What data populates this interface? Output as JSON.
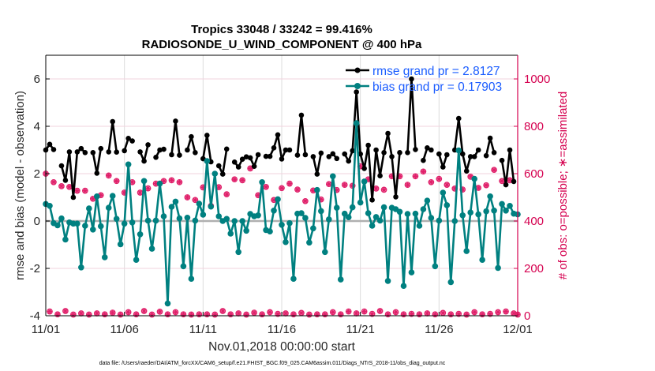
{
  "chart_data": {
    "type": "line",
    "title": "Tropics 33048 / 33242 = 99.416%",
    "subtitle": "RADIOSONDE_U_WIND_COMPONENT @ 400 hPa",
    "xlabel": "Nov.01,2018 00:00:00 start",
    "ylabel": "rmse and bias (model - observation)",
    "y2label": "# of obs: o=possible; ∗=assimilated",
    "footer": "data file: /Users/raeder/DAI/ATM_forcXX/CAM6_setup/f.e21.FHIST_BGC.f09_025.CAM6assim.011/Diags_NTrS_2018-11/obs_diag_output.nc",
    "x_tick_labels": [
      "11/01",
      "11/06",
      "11/11",
      "11/16",
      "11/21",
      "11/26",
      "12/01"
    ],
    "x_range_days": [
      0,
      30
    ],
    "x_step_days": 0.25,
    "ylim": [
      -4,
      7
    ],
    "y_ticks": [
      -4,
      -2,
      0,
      2,
      4,
      6
    ],
    "y2lim": [
      0,
      1100
    ],
    "y2_ticks": [
      0,
      200,
      400,
      600,
      800,
      1000
    ],
    "grid": true,
    "legend_placement": "top-right",
    "colors": {
      "rmse": "#000000",
      "bias": "#008080",
      "obs": "#e0206a",
      "right_axis": "#d5004f",
      "legend_text": "#1a5cff",
      "zero_line": "#b0b0b0"
    },
    "series": [
      {
        "name": "rmse grand pr = 2.8127",
        "axis": "left",
        "values": [
          3.0,
          3.24,
          3.02,
          null,
          2.33,
          1.72,
          2.92,
          1.0,
          2.92,
          3.06,
          2.89,
          null,
          2.89,
          2.02,
          3.06,
          null,
          2.92,
          4.2,
          2.91,
          null,
          2.97,
          3.49,
          3.38,
          null,
          2.92,
          2.53,
          3.22,
          null,
          2.69,
          3.0,
          3.03,
          null,
          2.8,
          4.22,
          2.78,
          null,
          3.0,
          3.56,
          2.89,
          null,
          2.63,
          3.62,
          2.5,
          null,
          2.33,
          1.98,
          3.04,
          null,
          2.49,
          2.28,
          2.61,
          2.71,
          2.67,
          2.31,
          2.8,
          null,
          2.73,
          2.73,
          3.09,
          3.64,
          2.62,
          3.0,
          3.0,
          null,
          2.78,
          4.47,
          2.8,
          null,
          2.72,
          1.98,
          2.87,
          null,
          2.72,
          2.84,
          2.64,
          null,
          2.83,
          2.53,
          2.97,
          5.45,
          2.83,
          2.22,
          3.2,
          0.89,
          3.0,
          1.91,
          2.89,
          3.7,
          2.72,
          1.02,
          2.89,
          null,
          2.89,
          6.0,
          3.02,
          null,
          2.56,
          3.09,
          3.0,
          null,
          2.83,
          2.28,
          2.8,
          null,
          3.0,
          4.33,
          2.83,
          2.11,
          2.72,
          2.72,
          3.0,
          null,
          2.76,
          3.5,
          2.89,
          null,
          2.56,
          1.53,
          3.0,
          1.67,
          null
        ]
      },
      {
        "name": "bias grand pr = 0.17903",
        "axis": "left",
        "values": [
          0.72,
          0.64,
          -0.09,
          -0.18,
          0.11,
          -0.78,
          -0.06,
          -0.11,
          -0.11,
          -1.96,
          -0.2,
          0.53,
          -0.36,
          1.04,
          -0.22,
          -1.53,
          0.56,
          1.06,
          0.09,
          -0.98,
          -0.11,
          2.39,
          -0.06,
          -1.64,
          -0.56,
          1.69,
          0.02,
          -1.17,
          0.02,
          1.58,
          0.2,
          -3.48,
          0.6,
          0.82,
          0.11,
          -1.91,
          0.14,
          -2.44,
          0.02,
          0.73,
          0.27,
          2.53,
          0.61,
          2.0,
          0.2,
          0,
          0.09,
          -0.53,
          0,
          -1.31,
          0,
          -0.41,
          0.3,
          0.2,
          0.24,
          1.64,
          -0.38,
          -0.44,
          0.44,
          0.92,
          -0.16,
          -0.89,
          -0.09,
          -2.44,
          0.31,
          0.33,
          0.13,
          -0.91,
          -0.31,
          1.31,
          0.42,
          -1.31,
          0.07,
          1.89,
          0.56,
          -2.47,
          0.31,
          0.16,
          0.58,
          4.13,
          0.78,
          1.67,
          0.33,
          -0.2,
          0.17,
          0.02,
          0.58,
          -2.53,
          0.56,
          0.5,
          0.39,
          -2.74,
          0.3,
          -2.17,
          0.31,
          -0.2,
          0.5,
          0.86,
          0.13,
          -1.91,
          0.02,
          1.2,
          0.67,
          -2.58,
          0,
          2.98,
          0.24,
          -1.27,
          0.36,
          1.78,
          0.28,
          -1.64,
          0.41,
          1.04,
          0.44,
          -1.98,
          0.72,
          0.44,
          0.64,
          0.31,
          0.28
        ]
      },
      {
        "name": "possible",
        "axis": "right",
        "values": [
          600,
          18,
          564,
          6,
          547,
          20,
          544,
          5,
          528,
          10,
          528,
          5,
          494,
          10,
          509,
          6,
          592,
          13,
          569,
          5,
          520,
          15,
          564,
          6,
          520,
          20,
          538,
          5,
          558,
          17,
          569,
          6,
          572,
          15,
          564,
          6,
          500,
          5,
          489,
          6,
          542,
          6,
          464,
          5,
          543,
          20,
          513,
          6,
          576,
          10,
          572,
          5,
          622,
          13,
          509,
          6,
          544,
          15,
          489,
          8,
          539,
          10,
          558,
          6,
          533,
          12,
          484,
          5,
          529,
          6,
          491,
          6,
          556,
          15,
          531,
          6,
          553,
          18,
          549,
          10,
          631,
          18,
          576,
          8,
          537,
          20,
          532,
          6,
          589,
          15,
          589,
          6,
          553,
          8,
          589,
          6,
          609,
          10,
          564,
          6,
          578,
          12,
          553,
          6,
          537,
          8,
          533,
          5,
          587,
          15,
          540,
          6,
          551,
          8,
          616,
          15,
          569,
          18,
          572,
          10,
          5
        ]
      },
      {
        "name": "assimilated",
        "axis": "right",
        "values": [
          600,
          18,
          564,
          6,
          547,
          20,
          544,
          5,
          528,
          10,
          528,
          5,
          494,
          10,
          509,
          6,
          592,
          13,
          569,
          5,
          520,
          15,
          564,
          6,
          520,
          20,
          538,
          5,
          558,
          17,
          569,
          6,
          572,
          15,
          564,
          6,
          500,
          5,
          489,
          6,
          542,
          6,
          464,
          5,
          543,
          20,
          513,
          6,
          576,
          10,
          572,
          5,
          622,
          13,
          509,
          6,
          544,
          15,
          489,
          8,
          539,
          10,
          558,
          6,
          533,
          12,
          484,
          5,
          529,
          6,
          491,
          6,
          556,
          15,
          531,
          6,
          553,
          18,
          549,
          10,
          631,
          18,
          576,
          8,
          537,
          20,
          532,
          6,
          589,
          15,
          589,
          6,
          553,
          8,
          589,
          6,
          609,
          10,
          564,
          6,
          578,
          12,
          553,
          6,
          537,
          8,
          533,
          5,
          587,
          15,
          540,
          6,
          551,
          8,
          616,
          15,
          569,
          18,
          572,
          10,
          5
        ]
      }
    ]
  }
}
